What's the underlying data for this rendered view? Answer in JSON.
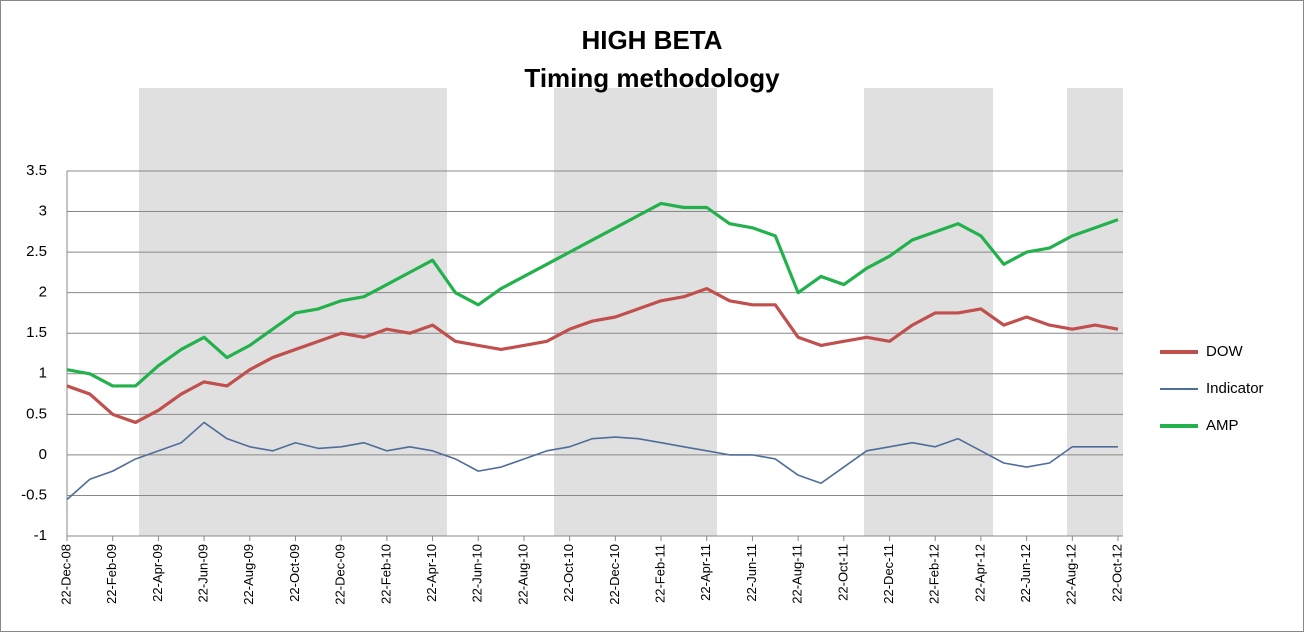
{
  "chart_data": {
    "type": "line",
    "title": "HIGH BETA",
    "subtitle": "Timing methodology",
    "categories": [
      "22-Dec-08",
      null,
      "22-Feb-09",
      null,
      "22-Apr-09",
      null,
      "22-Jun-09",
      null,
      "22-Aug-09",
      null,
      "22-Oct-09",
      null,
      "22-Dec-09",
      null,
      "22-Feb-10",
      null,
      "22-Apr-10",
      null,
      "22-Jun-10",
      null,
      "22-Aug-10",
      null,
      "22-Oct-10",
      null,
      "22-Dec-10",
      null,
      "22-Feb-11",
      null,
      "22-Apr-11",
      null,
      "22-Jun-11",
      null,
      "22-Aug-11",
      null,
      "22-Oct-11",
      null,
      "22-Dec-11",
      null,
      "22-Feb-12",
      null,
      "22-Apr-12",
      null,
      "22-Jun-12",
      null,
      "22-Aug-12",
      null,
      "22-Oct-12"
    ],
    "series": [
      {
        "name": "DOW",
        "color": "#c0504d",
        "values": [
          0.85,
          0.75,
          0.5,
          0.4,
          0.55,
          0.75,
          0.9,
          0.85,
          1.05,
          1.2,
          1.3,
          1.4,
          1.5,
          1.45,
          1.55,
          1.5,
          1.6,
          1.4,
          1.35,
          1.3,
          1.35,
          1.4,
          1.55,
          1.65,
          1.7,
          1.8,
          1.9,
          1.95,
          2.05,
          1.9,
          1.85,
          1.85,
          1.45,
          1.35,
          1.4,
          1.45,
          1.4,
          1.6,
          1.75,
          1.75,
          1.8,
          1.6,
          1.7,
          1.6,
          1.55,
          1.6,
          1.55
        ]
      },
      {
        "name": "Indicator",
        "color": "#4f6d9a",
        "values": [
          -0.55,
          -0.3,
          -0.2,
          -0.05,
          0.05,
          0.15,
          0.4,
          0.2,
          0.1,
          0.05,
          0.15,
          0.08,
          0.1,
          0.15,
          0.05,
          0.1,
          0.05,
          -0.05,
          -0.2,
          -0.15,
          -0.05,
          0.05,
          0.1,
          0.2,
          0.22,
          0.2,
          0.15,
          0.1,
          0.05,
          0.0,
          0.0,
          -0.05,
          -0.25,
          -0.35,
          -0.15,
          0.05,
          0.1,
          0.15,
          0.1,
          0.2,
          0.05,
          -0.1,
          -0.15,
          -0.1,
          0.1,
          0.1,
          0.1
        ]
      },
      {
        "name": "AMP",
        "color": "#23b14d",
        "values": [
          1.05,
          1.0,
          0.85,
          0.85,
          1.1,
          1.3,
          1.45,
          1.2,
          1.35,
          1.55,
          1.75,
          1.8,
          1.9,
          1.95,
          2.1,
          2.25,
          2.4,
          2.0,
          1.85,
          2.05,
          2.2,
          2.35,
          2.5,
          2.65,
          2.8,
          2.95,
          3.1,
          3.05,
          3.05,
          2.85,
          2.8,
          2.7,
          2.0,
          2.2,
          2.1,
          2.3,
          2.45,
          2.65,
          2.75,
          2.85,
          2.7,
          2.35,
          2.5,
          2.55,
          2.7,
          2.8,
          2.9
        ]
      }
    ],
    "ylim": [
      -1,
      3.5
    ],
    "yticks": [
      -1,
      -0.5,
      0,
      0.5,
      1,
      1.5,
      2,
      2.5,
      3,
      3.5
    ],
    "grid": true,
    "legend": "right"
  }
}
